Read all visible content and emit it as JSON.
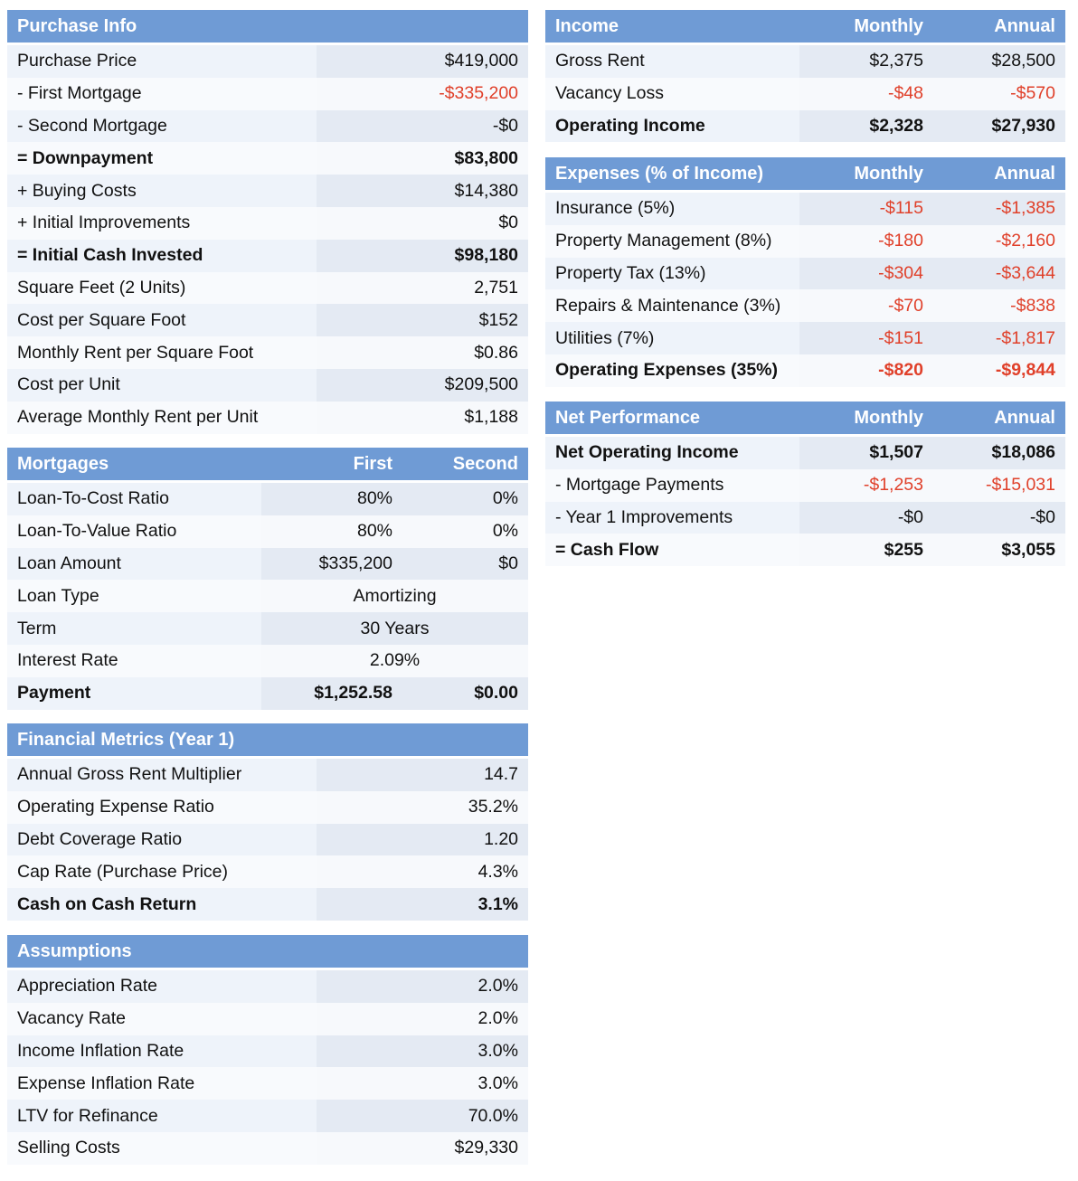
{
  "purchase": {
    "title": "Purchase Info",
    "rows": [
      {
        "label": "Purchase Price",
        "value": "$419,000"
      },
      {
        "label": "- First Mortgage",
        "value": "-$335,200",
        "neg": true
      },
      {
        "label": "- Second Mortgage",
        "value": "-$0"
      },
      {
        "label": "= Downpayment",
        "value": "$83,800",
        "bold": true
      },
      {
        "label": "+ Buying Costs",
        "value": "$14,380"
      },
      {
        "label": "+ Initial Improvements",
        "value": "$0"
      },
      {
        "label": "= Initial Cash Invested",
        "value": "$98,180",
        "bold": true
      },
      {
        "label": "Square Feet (2 Units)",
        "value": "2,751"
      },
      {
        "label": "Cost per Square Foot",
        "value": "$152"
      },
      {
        "label": "Monthly Rent per Square Foot",
        "value": "$0.86"
      },
      {
        "label": "Cost per Unit",
        "value": "$209,500"
      },
      {
        "label": "Average Monthly Rent per Unit",
        "value": "$1,188"
      }
    ]
  },
  "mortgages": {
    "title": "Mortgages",
    "col1": "First",
    "col2": "Second",
    "rows": [
      {
        "label": "Loan-To-Cost Ratio",
        "first": "80%",
        "second": "0%"
      },
      {
        "label": "Loan-To-Value Ratio",
        "first": "80%",
        "second": "0%"
      },
      {
        "label": "Loan Amount",
        "first": "$335,200",
        "second": "$0"
      },
      {
        "label": "Loan Type",
        "first": "Amortizing",
        "second": "",
        "center": true
      },
      {
        "label": "Term",
        "first": "30 Years",
        "second": "",
        "center": true
      },
      {
        "label": "Interest Rate",
        "first": "2.09%",
        "second": "",
        "center": true
      },
      {
        "label": "Payment",
        "first": "$1,252.58",
        "second": "$0.00",
        "bold": true
      }
    ]
  },
  "metrics": {
    "title": "Financial Metrics (Year 1)",
    "rows": [
      {
        "label": "Annual Gross Rent Multiplier",
        "value": "14.7"
      },
      {
        "label": "Operating Expense Ratio",
        "value": "35.2%"
      },
      {
        "label": "Debt Coverage Ratio",
        "value": "1.20"
      },
      {
        "label": "Cap Rate (Purchase Price)",
        "value": "4.3%"
      },
      {
        "label": "Cash on Cash Return",
        "value": "3.1%",
        "bold": true
      }
    ]
  },
  "assumptions": {
    "title": "Assumptions",
    "rows": [
      {
        "label": "Appreciation Rate",
        "value": "2.0%"
      },
      {
        "label": "Vacancy Rate",
        "value": "2.0%"
      },
      {
        "label": "Income Inflation Rate",
        "value": "3.0%"
      },
      {
        "label": "Expense Inflation Rate",
        "value": "3.0%"
      },
      {
        "label": "LTV for Refinance",
        "value": "70.0%"
      },
      {
        "label": "Selling Costs",
        "value": "$29,330"
      }
    ]
  },
  "income": {
    "title": "Income",
    "col1": "Monthly",
    "col2": "Annual",
    "rows": [
      {
        "label": "Gross Rent",
        "monthly": "$2,375",
        "annual": "$28,500"
      },
      {
        "label": "Vacancy Loss",
        "monthly": "-$48",
        "annual": "-$570",
        "neg": true
      },
      {
        "label": "Operating Income",
        "monthly": "$2,328",
        "annual": "$27,930",
        "bold": true
      }
    ]
  },
  "expenses": {
    "title": "Expenses (% of Income)",
    "col1": "Monthly",
    "col2": "Annual",
    "rows": [
      {
        "label": "Insurance (5%)",
        "monthly": "-$115",
        "annual": "-$1,385",
        "neg": true
      },
      {
        "label": "Property Management (8%)",
        "monthly": "-$180",
        "annual": "-$2,160",
        "neg": true
      },
      {
        "label": "Property Tax (13%)",
        "monthly": "-$304",
        "annual": "-$3,644",
        "neg": true
      },
      {
        "label": "Repairs & Maintenance (3%)",
        "monthly": "-$70",
        "annual": "-$838",
        "neg": true
      },
      {
        "label": "Utilities (7%)",
        "monthly": "-$151",
        "annual": "-$1,817",
        "neg": true
      },
      {
        "label": "Operating Expenses (35%)",
        "monthly": "-$820",
        "annual": "-$9,844",
        "neg": true,
        "bold": true
      }
    ]
  },
  "net": {
    "title": "Net Performance",
    "col1": "Monthly",
    "col2": "Annual",
    "rows": [
      {
        "label": "Net Operating Income",
        "monthly": "$1,507",
        "annual": "$18,086",
        "bold": true
      },
      {
        "label": "- Mortgage Payments",
        "monthly": "-$1,253",
        "annual": "-$15,031",
        "neg": true
      },
      {
        "label": "- Year 1 Improvements",
        "monthly": "-$0",
        "annual": "-$0"
      },
      {
        "label": "= Cash Flow",
        "monthly": "$255",
        "annual": "$3,055",
        "bold": true
      }
    ]
  },
  "colors": {
    "header": "#6f9bd5",
    "negative": "#e0402a"
  }
}
